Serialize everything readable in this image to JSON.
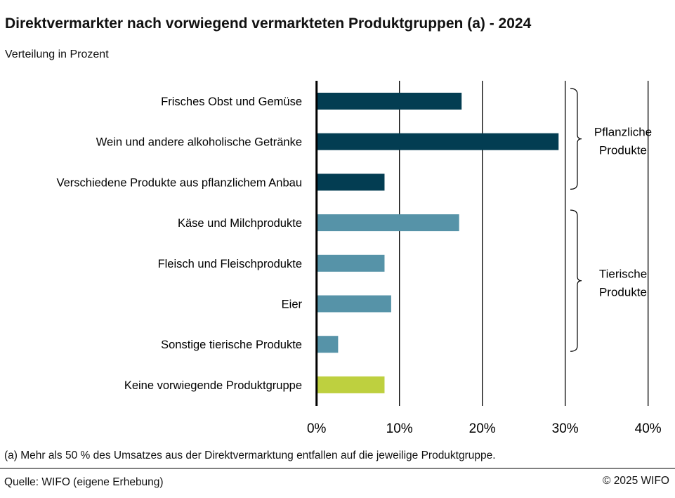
{
  "header": {
    "title": "Direktvermarkter nach vorwiegend vermarkteten Produktgruppen (a) - 2024",
    "subtitle": "Verteilung in Prozent"
  },
  "footer": {
    "note": "(a) Mehr als 50 % des Umsatzes aus der Direktvermarktung entfallen auf die jeweilige Produktgruppe.",
    "source": "Quelle: WIFO (eigene Erhebung)",
    "copyright": "© 2025 WIFO"
  },
  "colors": {
    "pflanzlich": "#033D52",
    "tierisch": "#5693A8",
    "keine": "#BED03F"
  },
  "chart_data": {
    "type": "bar",
    "orientation": "horizontal",
    "title": "Direktvermarkter nach vorwiegend vermarkteten Produktgruppen (a) - 2024",
    "subtitle": "Verteilung in Prozent",
    "categories": [
      "Frisches Obst und Gemüse",
      "Wein und andere alkoholische Getränke",
      "Verschiedene Produkte aus pflanzlichem Anbau",
      "Käse und Milchprodukte",
      "Fleisch und Fleischprodukte",
      "Eier",
      "Sonstige tierische Produkte",
      "Keine vorwiegende Produktgruppe"
    ],
    "values": [
      17.5,
      29.2,
      8.2,
      17.2,
      8.2,
      9.0,
      2.6,
      8.2
    ],
    "groups": [
      "pflanzlich",
      "pflanzlich",
      "pflanzlich",
      "tierisch",
      "tierisch",
      "tierisch",
      "tierisch",
      "keine"
    ],
    "xlim": [
      0,
      40
    ],
    "xticks": [
      "0%",
      "10%",
      "20%",
      "30%",
      "40%"
    ],
    "grid": true,
    "annotations": [
      {
        "label": [
          "Pflanzliche",
          "Produkte"
        ],
        "from": 0,
        "to": 2
      },
      {
        "label": [
          "Tierische",
          "Produkte"
        ],
        "from": 3,
        "to": 6
      }
    ]
  }
}
